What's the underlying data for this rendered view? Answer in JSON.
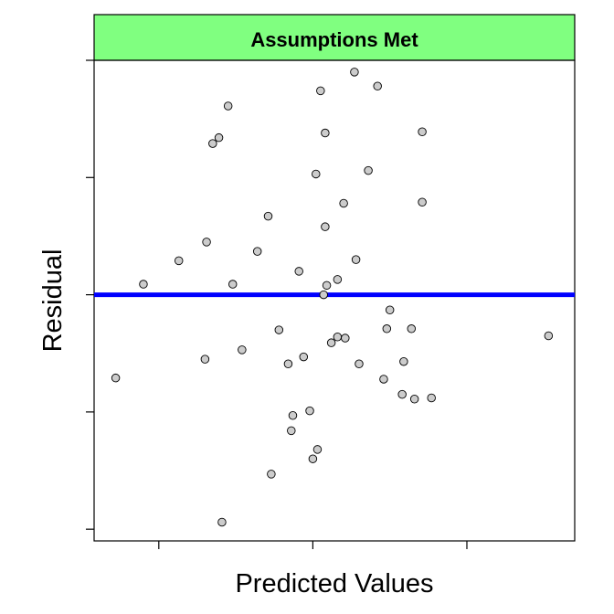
{
  "chart_data": {
    "type": "scatter",
    "title": "Assumptions Met",
    "xlabel": "Predicted Values",
    "ylabel": "Residual",
    "xlim": [
      -0.42,
      2.7
    ],
    "ylim": [
      -2.1,
      2.0
    ],
    "x_ticks": [
      0,
      1,
      2
    ],
    "y_ticks": [
      -2,
      -1,
      0,
      1,
      2
    ],
    "tick_labels_shown": false,
    "grid": false,
    "reference_line": {
      "y": 0,
      "color": "#0000ff"
    },
    "header_fill": "#80ff80",
    "point_fill": "#cccccc",
    "point_stroke": "#000000",
    "points": [
      {
        "x": -0.28,
        "y": -0.71
      },
      {
        "x": -0.1,
        "y": 0.09
      },
      {
        "x": 0.13,
        "y": 0.29
      },
      {
        "x": 0.3,
        "y": -0.55
      },
      {
        "x": 0.31,
        "y": 0.45
      },
      {
        "x": 0.35,
        "y": 1.29
      },
      {
        "x": 0.39,
        "y": 1.34
      },
      {
        "x": 0.41,
        "y": -1.94
      },
      {
        "x": 0.45,
        "y": 1.61
      },
      {
        "x": 0.48,
        "y": 0.09
      },
      {
        "x": 0.54,
        "y": -0.47
      },
      {
        "x": 0.64,
        "y": 0.37
      },
      {
        "x": 0.71,
        "y": 0.67
      },
      {
        "x": 0.73,
        "y": -1.53
      },
      {
        "x": 0.78,
        "y": -0.3
      },
      {
        "x": 0.84,
        "y": -0.59
      },
      {
        "x": 0.86,
        "y": -1.16
      },
      {
        "x": 0.87,
        "y": -1.03
      },
      {
        "x": 0.91,
        "y": 0.2
      },
      {
        "x": 0.94,
        "y": -0.53
      },
      {
        "x": 0.98,
        "y": -0.99
      },
      {
        "x": 1.0,
        "y": -1.4
      },
      {
        "x": 1.02,
        "y": 1.03
      },
      {
        "x": 1.03,
        "y": -1.32
      },
      {
        "x": 1.05,
        "y": 1.74
      },
      {
        "x": 1.07,
        "y": 0.0
      },
      {
        "x": 1.08,
        "y": 0.58
      },
      {
        "x": 1.08,
        "y": 1.38
      },
      {
        "x": 1.09,
        "y": 0.08
      },
      {
        "x": 1.12,
        "y": -0.41
      },
      {
        "x": 1.16,
        "y": 0.13
      },
      {
        "x": 1.16,
        "y": -0.36
      },
      {
        "x": 1.2,
        "y": 0.78
      },
      {
        "x": 1.21,
        "y": -0.37
      },
      {
        "x": 1.27,
        "y": 1.9
      },
      {
        "x": 1.28,
        "y": 0.3
      },
      {
        "x": 1.3,
        "y": -0.59
      },
      {
        "x": 1.36,
        "y": 1.06
      },
      {
        "x": 1.42,
        "y": 1.78
      },
      {
        "x": 1.46,
        "y": -0.72
      },
      {
        "x": 1.48,
        "y": -0.29
      },
      {
        "x": 1.5,
        "y": -0.13
      },
      {
        "x": 1.58,
        "y": -0.85
      },
      {
        "x": 1.59,
        "y": -0.57
      },
      {
        "x": 1.64,
        "y": -0.29
      },
      {
        "x": 1.66,
        "y": -0.89
      },
      {
        "x": 1.71,
        "y": 1.39
      },
      {
        "x": 1.71,
        "y": 0.79
      },
      {
        "x": 1.77,
        "y": -0.88
      },
      {
        "x": 2.53,
        "y": -0.35
      }
    ]
  }
}
